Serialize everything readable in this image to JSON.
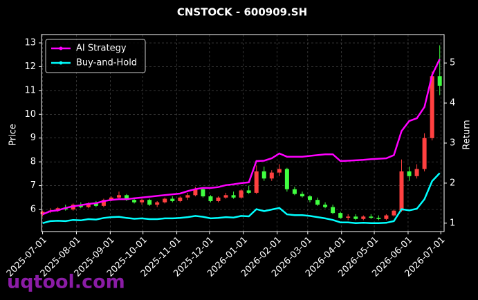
{
  "chart_data": {
    "type": "candlestick",
    "title": "CNSTOCK - 600909.SH",
    "ylabel": "Price",
    "y2label": "Return",
    "watermark": "uqtool.com",
    "x": [
      "2025-07-01",
      "2025-07-08",
      "2025-07-15",
      "2025-07-22",
      "2025-07-29",
      "2025-08-05",
      "2025-08-12",
      "2025-08-19",
      "2025-08-26",
      "2025-09-02",
      "2025-09-09",
      "2025-09-16",
      "2025-09-23",
      "2025-09-30",
      "2025-10-07",
      "2025-10-14",
      "2025-10-21",
      "2025-10-28",
      "2025-11-04",
      "2025-11-11",
      "2025-11-18",
      "2025-11-25",
      "2025-12-02",
      "2025-12-09",
      "2025-12-16",
      "2025-12-23",
      "2025-12-30",
      "2026-01-06",
      "2026-01-13",
      "2026-01-20",
      "2026-01-27",
      "2026-02-03",
      "2026-02-10",
      "2026-02-17",
      "2026-02-24",
      "2026-03-03",
      "2026-03-10",
      "2026-03-17",
      "2026-03-24",
      "2026-03-31",
      "2026-04-07",
      "2026-04-14",
      "2026-04-21",
      "2026-04-28",
      "2026-05-05",
      "2026-05-12",
      "2026-05-19",
      "2026-05-26",
      "2026-06-02",
      "2026-06-09",
      "2026-06-16",
      "2026-06-23",
      "2026-06-30"
    ],
    "open": [
      5.8,
      5.9,
      5.95,
      6.05,
      6.0,
      6.2,
      6.1,
      6.25,
      6.15,
      6.4,
      6.5,
      6.6,
      6.4,
      6.3,
      6.4,
      6.2,
      6.3,
      6.45,
      6.35,
      6.5,
      6.6,
      6.85,
      6.55,
      6.35,
      6.5,
      6.6,
      6.5,
      6.8,
      6.7,
      7.6,
      7.3,
      7.55,
      7.7,
      6.85,
      6.65,
      6.55,
      6.4,
      6.2,
      6.1,
      5.85,
      5.65,
      5.7,
      5.6,
      5.7,
      5.65,
      5.6,
      5.75,
      5.95,
      7.6,
      7.4,
      7.7,
      9.0,
      11.6
    ],
    "high": [
      5.95,
      6.05,
      6.1,
      6.2,
      6.25,
      6.3,
      6.3,
      6.35,
      6.45,
      6.55,
      6.75,
      6.65,
      6.5,
      6.45,
      6.45,
      6.35,
      6.5,
      6.55,
      6.55,
      6.7,
      6.95,
      6.9,
      6.6,
      6.55,
      6.7,
      6.75,
      6.85,
      7.0,
      7.85,
      7.8,
      7.65,
      7.9,
      7.75,
      6.95,
      6.75,
      6.6,
      6.5,
      6.3,
      6.2,
      5.9,
      5.8,
      5.8,
      5.75,
      5.8,
      5.75,
      5.8,
      6.0,
      8.1,
      7.8,
      7.9,
      9.2,
      11.8,
      12.9
    ],
    "low": [
      5.7,
      5.85,
      5.9,
      5.95,
      5.95,
      6.05,
      6.05,
      6.1,
      6.1,
      6.35,
      6.45,
      6.35,
      6.25,
      6.2,
      6.15,
      6.1,
      6.25,
      6.3,
      6.3,
      6.4,
      6.55,
      6.5,
      6.3,
      6.3,
      6.45,
      6.45,
      6.45,
      6.65,
      6.65,
      7.2,
      7.2,
      7.4,
      6.75,
      6.6,
      6.5,
      6.3,
      6.15,
      6.05,
      5.8,
      5.6,
      5.55,
      5.55,
      5.55,
      5.6,
      5.55,
      5.55,
      5.7,
      5.9,
      7.2,
      7.3,
      7.6,
      8.9,
      10.8
    ],
    "close": [
      5.9,
      5.95,
      6.05,
      6.0,
      6.2,
      6.1,
      6.25,
      6.15,
      6.4,
      6.5,
      6.6,
      6.4,
      6.3,
      6.4,
      6.2,
      6.3,
      6.45,
      6.35,
      6.5,
      6.6,
      6.85,
      6.55,
      6.35,
      6.5,
      6.6,
      6.5,
      6.8,
      6.7,
      7.6,
      7.3,
      7.55,
      7.7,
      6.85,
      6.65,
      6.55,
      6.4,
      6.2,
      6.1,
      5.85,
      5.65,
      5.7,
      5.6,
      5.7,
      5.65,
      5.6,
      5.75,
      5.95,
      7.6,
      7.4,
      7.7,
      9.0,
      11.6,
      11.2
    ],
    "up_color": "#ff4040",
    "down_color": "#40ff40",
    "series": [
      {
        "name": "AI Strategy",
        "color": "#ff00ff",
        "axis": "y2",
        "values": [
          1.22,
          1.3,
          1.32,
          1.38,
          1.42,
          1.45,
          1.48,
          1.5,
          1.55,
          1.58,
          1.6,
          1.6,
          1.62,
          1.64,
          1.66,
          1.68,
          1.7,
          1.72,
          1.74,
          1.8,
          1.85,
          1.88,
          1.88,
          1.9,
          1.95,
          1.97,
          2.0,
          2.02,
          2.55,
          2.56,
          2.62,
          2.74,
          2.66,
          2.66,
          2.66,
          2.68,
          2.7,
          2.72,
          2.72,
          2.55,
          2.56,
          2.57,
          2.58,
          2.6,
          2.61,
          2.62,
          2.7,
          3.3,
          3.55,
          3.62,
          3.9,
          4.7,
          5.1
        ]
      },
      {
        "name": "Buy-and-Hold",
        "color": "#00ffff",
        "axis": "y2",
        "values": [
          1.0,
          1.05,
          1.06,
          1.05,
          1.08,
          1.07,
          1.1,
          1.09,
          1.13,
          1.15,
          1.16,
          1.13,
          1.11,
          1.12,
          1.1,
          1.1,
          1.12,
          1.12,
          1.13,
          1.15,
          1.18,
          1.16,
          1.12,
          1.13,
          1.15,
          1.14,
          1.18,
          1.17,
          1.35,
          1.3,
          1.34,
          1.38,
          1.22,
          1.2,
          1.2,
          1.18,
          1.15,
          1.12,
          1.08,
          1.02,
          1.02,
          1.0,
          1.01,
          1.0,
          1.0,
          1.01,
          1.05,
          1.35,
          1.32,
          1.36,
          1.6,
          2.05,
          2.25
        ]
      }
    ],
    "xlim": [
      "2025-06-30",
      "2026-07-04"
    ],
    "xticks": [
      "2025-07-01",
      "2025-08-01",
      "2025-09-01",
      "2025-10-01",
      "2025-11-01",
      "2025-12-01",
      "2026-01-01",
      "2026-02-01",
      "2026-03-01",
      "2026-04-01",
      "2026-05-01",
      "2026-06-01",
      "2026-07-01"
    ],
    "ylim": [
      5.07,
      13.35
    ],
    "yticks": [
      6,
      7,
      8,
      9,
      10,
      11,
      12,
      13
    ],
    "y2lim": [
      0.79,
      5.71
    ],
    "y2ticks": [
      1,
      2,
      3,
      4,
      5
    ],
    "grid": true,
    "legend": "upper left"
  }
}
